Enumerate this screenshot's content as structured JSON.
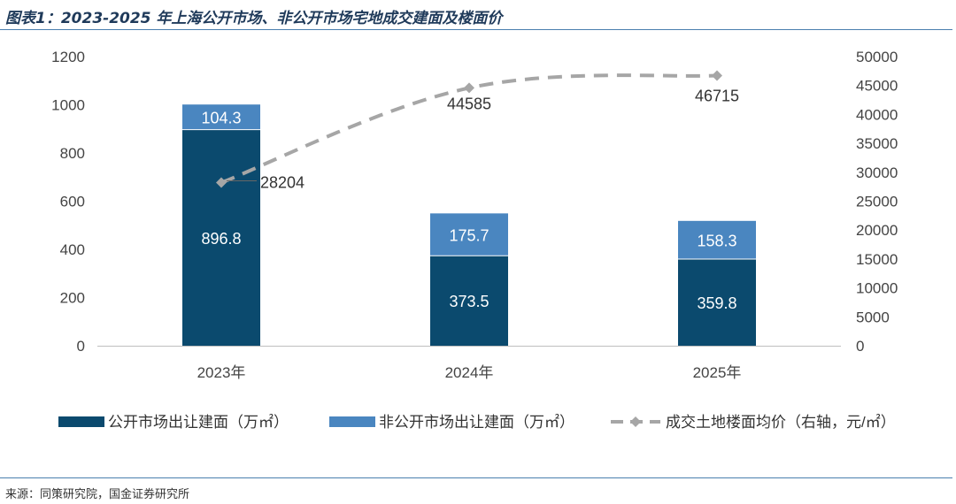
{
  "title": "图表1：2023-2025 年上海公开市场、非公开市场宅地成交建面及楼面价",
  "source": "来源：同策研究院，国金证券研究所",
  "chart_data": {
    "type": "bar",
    "stacked": true,
    "categories": [
      "2023年",
      "2024年",
      "2025年"
    ],
    "series": [
      {
        "name": "公开市场出让建面（万㎡）",
        "kind": "bar",
        "axis": "left",
        "color": "#0b4a6e",
        "values": [
          896.8,
          373.5,
          359.8
        ]
      },
      {
        "name": "非公开市场出让建面（万㎡）",
        "kind": "bar",
        "axis": "left",
        "color": "#4a86c0",
        "values": [
          104.3,
          175.7,
          158.3
        ]
      },
      {
        "name": "成交土地楼面均价（右轴，元/㎡）",
        "kind": "line",
        "style": "dashed",
        "axis": "right",
        "color": "#a6a6a6",
        "values": [
          28204,
          44585,
          46715
        ]
      }
    ],
    "left_axis": {
      "ylim": [
        0,
        1200
      ],
      "ticks": [
        "0",
        "200",
        "400",
        "600",
        "800",
        "1000",
        "1200"
      ]
    },
    "right_axis": {
      "ylim": [
        0,
        50000
      ],
      "ticks": [
        "0",
        "5000",
        "10000",
        "15000",
        "20000",
        "25000",
        "30000",
        "35000",
        "40000",
        "45000",
        "50000"
      ]
    },
    "labels": {
      "public": [
        "896.8",
        "373.5",
        "359.8"
      ],
      "nonpublic": [
        "104.3",
        "175.7",
        "158.3"
      ],
      "price": [
        "28204",
        "44585",
        "46715"
      ]
    },
    "grid": false,
    "legend": "bottom"
  }
}
